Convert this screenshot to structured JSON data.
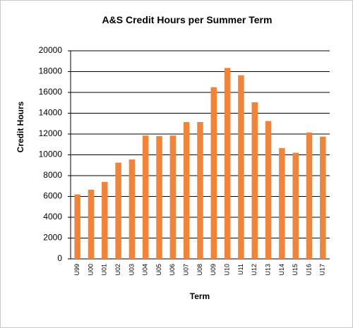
{
  "chart_data": {
    "type": "bar",
    "title": "A&S Credit Hours per Summer Term",
    "x_label": "Term",
    "y_label": "Credit Hours",
    "categories": [
      "U99",
      "U00",
      "U01",
      "U02",
      "U03",
      "U04",
      "U05",
      "U06",
      "U07",
      "U08",
      "U09",
      "U10",
      "U11",
      "U12",
      "U13",
      "U14",
      "U15",
      "U16",
      "U17"
    ],
    "values": [
      6200,
      6650,
      7400,
      9250,
      9550,
      11850,
      11800,
      11850,
      13150,
      13150,
      16500,
      18350,
      17650,
      15050,
      13250,
      10650,
      10200,
      12150,
      11750
    ],
    "color": "#f0843a",
    "ylim": [
      0,
      20000
    ],
    "yticks": [
      0,
      2000,
      4000,
      6000,
      8000,
      10000,
      12000,
      14000,
      16000,
      18000,
      20000
    ],
    "grid": true
  }
}
